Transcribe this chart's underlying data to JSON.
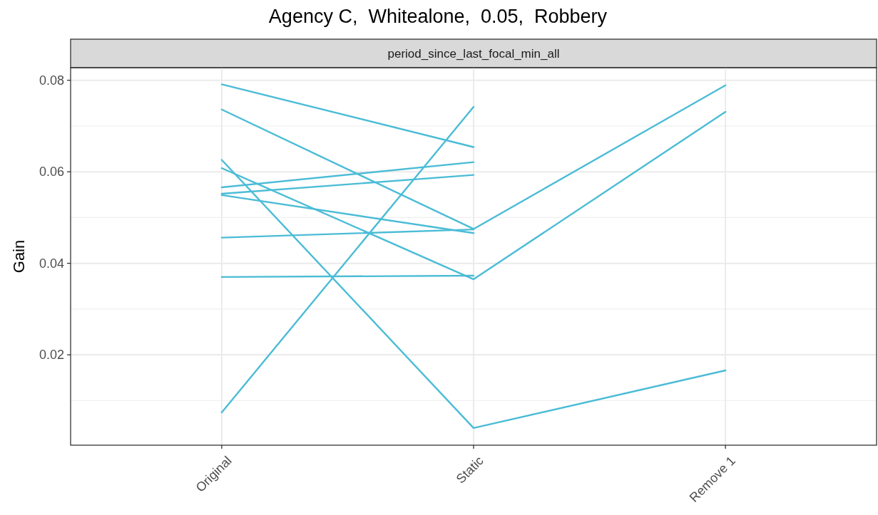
{
  "chart_data": {
    "type": "line",
    "title": "Agency C,  Whitealone,  0.05,  Robbery",
    "subtitle": "period_since_last_focal_min_all",
    "ylabel": "Gain",
    "categories": [
      "Original",
      "Static",
      "Remove 1"
    ],
    "series": [
      {
        "color": "#4bbcd6",
        "values": [
          0.0791,
          0.0654,
          null
        ]
      },
      {
        "color": "#4bbcd6",
        "values": [
          0.0736,
          0.0475,
          0.0789
        ]
      },
      {
        "color": "#4bbcd6",
        "values": [
          0.0626,
          0.004,
          0.0166
        ]
      },
      {
        "color": "#4bbcd6",
        "values": [
          0.0608,
          0.0365,
          0.0731
        ]
      },
      {
        "color": "#4bbcd6",
        "values": [
          0.0566,
          0.0621,
          null
        ]
      },
      {
        "color": "#4bbcd6",
        "values": [
          0.0552,
          0.0593,
          null
        ]
      },
      {
        "color": "#4bbcd6",
        "values": [
          0.0549,
          0.0466,
          null
        ]
      },
      {
        "color": "#4bbcd6",
        "values": [
          0.0456,
          0.0474,
          null
        ]
      },
      {
        "color": "#4bbcd6",
        "values": [
          0.037,
          0.0373,
          null
        ]
      },
      {
        "color": "#4bbcd6",
        "values": [
          0.0074,
          0.0742,
          null
        ]
      }
    ],
    "ylim": [
      0.00025,
      0.08275
    ],
    "yticks": [
      0.02,
      0.04,
      0.06,
      0.08
    ],
    "grid": true,
    "marker": "none",
    "line_style": "solid"
  }
}
